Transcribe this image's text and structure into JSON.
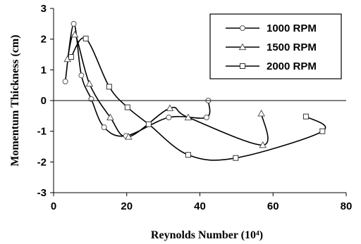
{
  "chart_data": {
    "type": "line",
    "title": "",
    "xlabel": "Reynolds Number (10⁴)",
    "ylabel": "Momentum Thickness (cm)",
    "xlim": [
      0,
      80
    ],
    "ylim": [
      -3,
      3
    ],
    "xticks": [
      0,
      20,
      40,
      60,
      80
    ],
    "yticks": [
      -3,
      -2,
      -1,
      0,
      1,
      2,
      3
    ],
    "xtick_labels": [
      "0",
      "20",
      "40",
      "60",
      "80"
    ],
    "ytick_labels": [
      "-3",
      "-2",
      "-1",
      "0",
      "1",
      "2",
      "3"
    ],
    "grid": false,
    "legend_position": "top-right",
    "series": [
      {
        "name": "1000 RPM",
        "marker": "circle",
        "x": [
          3.2,
          5.5,
          7.6,
          10.3,
          13.8,
          19.8,
          31.5,
          41.8,
          42.3
        ],
        "y": [
          0.62,
          2.5,
          0.82,
          0.05,
          -0.87,
          -1.15,
          -0.55,
          -0.55,
          0.0
        ]
      },
      {
        "name": "1500 RPM",
        "marker": "triangle",
        "x": [
          3.8,
          5.8,
          9.8,
          15.5,
          20.5,
          31.8,
          36.8,
          57.2,
          56.8
        ],
        "y": [
          1.35,
          2.15,
          0.55,
          -0.55,
          -1.18,
          -0.25,
          -0.55,
          -1.45,
          -0.42
        ]
      },
      {
        "name": "2000 RPM",
        "marker": "square",
        "x": [
          4.8,
          8.8,
          15.2,
          20.2,
          26.0,
          36.8,
          49.8,
          73.5,
          69.0
        ],
        "y": [
          1.42,
          2.02,
          0.45,
          -0.22,
          -0.77,
          -1.77,
          -1.87,
          -1.0,
          -0.52
        ]
      }
    ]
  }
}
